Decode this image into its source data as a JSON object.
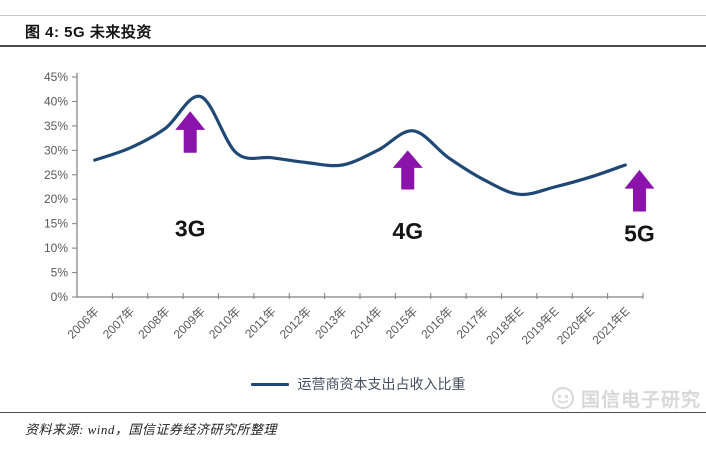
{
  "figure": {
    "title": "图 4: 5G 未来投资"
  },
  "chart_data": {
    "type": "line",
    "title": "图 4: 5G 未来投资",
    "categories": [
      "2006年",
      "2007年",
      "2008年",
      "2009年",
      "2010年",
      "2011年",
      "2012年",
      "2013年",
      "2014年",
      "2015年",
      "2016年",
      "2017年",
      "2018年E",
      "2019年E",
      "2020年E",
      "2021年E"
    ],
    "series": [
      {
        "name": "运营商资本支出占收入比重",
        "values": [
          28,
          30.5,
          34.5,
          41,
          29.5,
          28.5,
          27.5,
          27,
          30,
          34,
          28.5,
          24,
          21,
          22.5,
          24.5,
          27
        ]
      }
    ],
    "xlabel": "",
    "ylabel": "",
    "ylim": [
      0,
      45
    ],
    "ytick_step": 5,
    "ytick_suffix": "%",
    "grid": false,
    "legend_position": "bottom",
    "line_color": "#1f4875",
    "annotation_color": "#8c12ac",
    "annotations": [
      {
        "label": "3G",
        "x_index": 2.7,
        "arrow_tip_value": 38,
        "arrow_base_value": 29.5,
        "label_value": 14
      },
      {
        "label": "4G",
        "x_index": 8.85,
        "arrow_tip_value": 30,
        "arrow_base_value": 22,
        "label_value": 13.5
      },
      {
        "label": "5G",
        "x_index": 15.4,
        "arrow_tip_value": 26,
        "arrow_base_value": 17.5,
        "label_value": 13
      }
    ]
  },
  "legend": {
    "label": "运营商资本支出占收入比重"
  },
  "watermark": {
    "text": "国信电子研究"
  },
  "footer": {
    "source": "资料来源: wind，国信证券经济研究所整理"
  }
}
